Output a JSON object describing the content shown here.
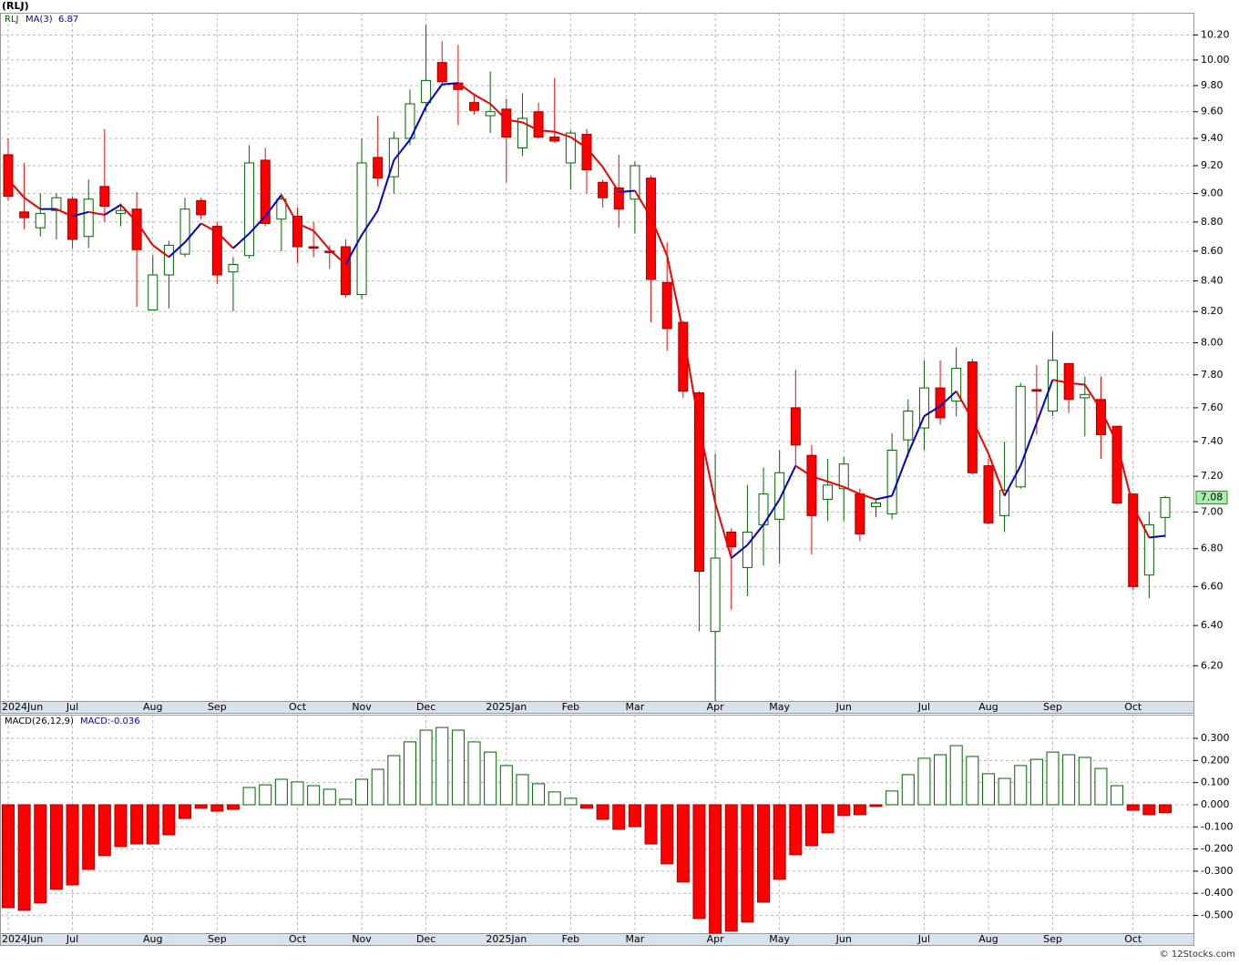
{
  "chart_data": [
    {
      "type": "candlestick",
      "title": "(RLJ)",
      "ticker": "RLJ",
      "log_scale": true,
      "grid": true,
      "legend": "top-left",
      "up_color": "#006400",
      "down_color": "#ff0000",
      "categories": [
        "2024Jun",
        null,
        null,
        null,
        "Jul",
        null,
        null,
        null,
        null,
        "Aug",
        null,
        null,
        null,
        "Sep",
        null,
        null,
        null,
        null,
        "Oct",
        null,
        null,
        null,
        "Nov",
        null,
        null,
        null,
        "Dec",
        null,
        null,
        null,
        null,
        "2025Jan",
        null,
        null,
        null,
        "Feb",
        null,
        null,
        null,
        "Mar",
        null,
        null,
        null,
        null,
        "Apr",
        null,
        null,
        null,
        "May",
        null,
        null,
        null,
        "Jun",
        null,
        null,
        null,
        null,
        "Jul",
        null,
        null,
        null,
        "Aug",
        null,
        null,
        null,
        "Sep",
        null,
        null,
        null,
        null,
        "Oct",
        null,
        null
      ],
      "open": [
        9.28,
        8.87,
        8.76,
        8.88,
        8.96,
        8.7,
        9.05,
        8.86,
        8.89,
        8.21,
        8.44,
        8.58,
        8.95,
        8.77,
        8.46,
        8.57,
        9.24,
        8.82,
        8.84,
        8.63,
        8.6,
        8.63,
        8.31,
        9.26,
        9.12,
        9.4,
        9.67,
        9.98,
        9.82,
        9.67,
        9.57,
        9.62,
        9.33,
        9.6,
        9.41,
        9.22,
        9.43,
        9.08,
        9.04,
        8.96,
        9.11,
        8.39,
        8.13,
        7.69,
        6.37,
        6.89,
        6.7,
        6.93,
        6.96,
        7.6,
        7.32,
        7.07,
        7.13,
        7.1,
        7.03,
        6.99,
        7.41,
        7.48,
        7.72,
        7.64,
        7.88,
        7.26,
        6.98,
        7.14,
        7.71,
        7.58,
        7.87,
        7.66,
        7.65,
        7.49,
        7.1,
        6.66,
        6.97
      ],
      "high": [
        9.4,
        9.22,
        9.0,
        9.0,
        8.98,
        9.1,
        9.47,
        8.93,
        9.01,
        8.57,
        8.67,
        8.97,
        8.97,
        8.8,
        8.56,
        9.35,
        9.33,
        9.0,
        8.9,
        8.8,
        8.64,
        8.68,
        9.4,
        9.57,
        9.45,
        9.77,
        10.28,
        10.15,
        10.12,
        9.74,
        9.91,
        9.7,
        9.74,
        9.67,
        9.86,
        9.46,
        9.47,
        9.1,
        9.28,
        9.23,
        9.13,
        8.66,
        8.14,
        7.7,
        7.33,
        6.91,
        7.15,
        7.25,
        7.35,
        7.83,
        7.38,
        7.3,
        7.31,
        7.13,
        7.07,
        7.45,
        7.65,
        7.89,
        7.89,
        7.97,
        7.9,
        7.3,
        7.4,
        7.75,
        7.86,
        8.07,
        7.87,
        7.79,
        7.79,
        7.49,
        7.1,
        7.0,
        7.09
      ],
      "low": [
        8.95,
        8.75,
        8.7,
        8.68,
        8.62,
        8.62,
        8.8,
        8.77,
        8.23,
        8.21,
        8.22,
        8.56,
        8.82,
        8.38,
        8.2,
        8.55,
        8.77,
        8.6,
        8.52,
        8.56,
        8.48,
        8.29,
        8.28,
        9.05,
        9.0,
        9.35,
        9.6,
        9.8,
        9.5,
        9.58,
        9.44,
        9.08,
        9.27,
        9.4,
        9.37,
        9.03,
        9.0,
        8.9,
        8.76,
        8.72,
        8.13,
        7.95,
        7.66,
        6.37,
        6.03,
        6.48,
        6.55,
        6.71,
        6.72,
        7.25,
        6.77,
        6.95,
        6.95,
        6.84,
        6.97,
        6.96,
        7.31,
        7.35,
        7.5,
        7.55,
        7.21,
        6.93,
        6.89,
        7.13,
        7.44,
        7.55,
        7.57,
        7.43,
        7.3,
        7.04,
        6.58,
        6.54,
        6.86
      ],
      "close": [
        8.98,
        8.83,
        8.86,
        8.97,
        8.68,
        8.96,
        8.91,
        8.88,
        8.61,
        8.44,
        8.64,
        8.89,
        8.85,
        8.44,
        8.51,
        9.22,
        8.79,
        8.96,
        8.63,
        8.62,
        8.59,
        8.31,
        9.22,
        9.11,
        9.4,
        9.66,
        9.84,
        9.83,
        9.77,
        9.61,
        9.6,
        9.41,
        9.55,
        9.41,
        9.38,
        9.44,
        9.17,
        8.97,
        8.89,
        9.2,
        8.41,
        8.09,
        7.7,
        6.68,
        6.75,
        6.81,
        6.89,
        7.1,
        7.22,
        7.38,
        6.98,
        7.15,
        7.27,
        6.88,
        7.05,
        7.35,
        7.58,
        7.72,
        7.54,
        7.84,
        7.22,
        6.94,
        7.12,
        7.73,
        7.7,
        7.89,
        7.65,
        7.68,
        7.44,
        7.05,
        6.6,
        6.93,
        7.08
      ],
      "ma": {
        "name": "MA(3)",
        "up_color": "#0000cc",
        "down_color": "#ee0000",
        "values": [
          9.1,
          8.97,
          8.89,
          8.89,
          8.84,
          8.87,
          8.85,
          8.92,
          8.8,
          8.64,
          8.56,
          8.66,
          8.79,
          8.73,
          8.62,
          8.72,
          8.84,
          8.99,
          8.79,
          8.74,
          8.61,
          8.51,
          8.71,
          8.88,
          9.24,
          9.39,
          9.64,
          9.81,
          9.82,
          9.73,
          9.66,
          9.54,
          9.52,
          9.46,
          9.45,
          9.41,
          9.33,
          9.19,
          9.01,
          9.02,
          8.83,
          8.57,
          8.07,
          7.49,
          7.05,
          6.75,
          6.82,
          6.93,
          7.07,
          7.26,
          7.2,
          7.17,
          7.14,
          7.1,
          7.07,
          7.09,
          7.33,
          7.55,
          7.61,
          7.7,
          7.53,
          7.33,
          7.09,
          7.26,
          7.51,
          7.77,
          7.75,
          7.74,
          7.59,
          7.39,
          7.03,
          6.86,
          6.87
        ]
      },
      "ylim": [
        6.03,
        10.38
      ],
      "yticks": [
        {
          "value": 6.2,
          "label": "6.20"
        },
        {
          "value": 6.4,
          "label": "6.40"
        },
        {
          "value": 6.6,
          "label": "6.60"
        },
        {
          "value": 6.8,
          "label": "6.80"
        },
        {
          "value": 7.0,
          "label": "7.00"
        },
        {
          "value": 7.2,
          "label": "7.20"
        },
        {
          "value": 7.4,
          "label": "7.40"
        },
        {
          "value": 7.6,
          "label": "7.60"
        },
        {
          "value": 7.8,
          "label": "7.80"
        },
        {
          "value": 8.0,
          "label": "8.00"
        },
        {
          "value": 8.2,
          "label": "8.20"
        },
        {
          "value": 8.4,
          "label": "8.40"
        },
        {
          "value": 8.6,
          "label": "8.60"
        },
        {
          "value": 8.8,
          "label": "8.80"
        },
        {
          "value": 9.0,
          "label": "9.00"
        },
        {
          "value": 9.2,
          "label": "9.20"
        },
        {
          "value": 9.4,
          "label": "9.40"
        },
        {
          "value": 9.6,
          "label": "9.60"
        },
        {
          "value": 9.8,
          "label": "9.80"
        },
        {
          "value": 10.0,
          "label": "10.00"
        },
        {
          "value": 10.2,
          "label": "10.20"
        }
      ],
      "watermark": "© 12Stocks.com"
    },
    {
      "type": "bar",
      "title": "MACD(26,12,9)",
      "current_label": "MACD:",
      "grid": true,
      "up_color": "#006400",
      "down_color": "#ff0000",
      "categories": [
        "2024Jun",
        null,
        null,
        null,
        "Jul",
        null,
        null,
        null,
        null,
        "Aug",
        null,
        null,
        null,
        "Sep",
        null,
        null,
        null,
        null,
        "Oct",
        null,
        null,
        null,
        "Nov",
        null,
        null,
        null,
        "Dec",
        null,
        null,
        null,
        null,
        "2025Jan",
        null,
        null,
        null,
        "Feb",
        null,
        null,
        null,
        "Mar",
        null,
        null,
        null,
        null,
        "Apr",
        null,
        null,
        null,
        "May",
        null,
        null,
        null,
        "Jun",
        null,
        null,
        null,
        null,
        "Jul",
        null,
        null,
        null,
        "Aug",
        null,
        null,
        null,
        "Sep",
        null,
        null,
        null,
        null,
        "Oct",
        null,
        null
      ],
      "values": [
        -0.465,
        -0.477,
        -0.444,
        -0.382,
        -0.362,
        -0.292,
        -0.23,
        -0.189,
        -0.177,
        -0.177,
        -0.136,
        -0.062,
        -0.016,
        -0.029,
        -0.021,
        0.078,
        0.09,
        0.115,
        0.103,
        0.086,
        0.07,
        0.025,
        0.115,
        0.16,
        0.222,
        0.284,
        0.337,
        0.349,
        0.337,
        0.284,
        0.238,
        0.177,
        0.136,
        0.095,
        0.058,
        0.029,
        -0.016,
        -0.066,
        -0.111,
        -0.099,
        -0.177,
        -0.267,
        -0.349,
        -0.514,
        -0.58,
        -0.571,
        -0.53,
        -0.44,
        -0.337,
        -0.226,
        -0.185,
        -0.127,
        -0.049,
        -0.045,
        -0.008,
        0.062,
        0.136,
        0.21,
        0.226,
        0.267,
        0.218,
        0.14,
        0.119,
        0.177,
        0.205,
        0.238,
        0.226,
        0.214,
        0.164,
        0.086,
        -0.025,
        -0.045,
        -0.036
      ],
      "ylim": [
        -0.58,
        0.407
      ],
      "yticks": [
        {
          "value": -0.5,
          "label": "-0.500"
        },
        {
          "value": -0.4,
          "label": "-0.400"
        },
        {
          "value": -0.3,
          "label": "-0.300"
        },
        {
          "value": -0.2,
          "label": "-0.200"
        },
        {
          "value": -0.1,
          "label": "-0.100"
        },
        {
          "value": 0,
          "label": "0.000"
        },
        {
          "value": 0.1,
          "label": "0.100"
        },
        {
          "value": 0.2,
          "label": "0.200"
        },
        {
          "value": 0.3,
          "label": "0.300"
        }
      ]
    }
  ]
}
